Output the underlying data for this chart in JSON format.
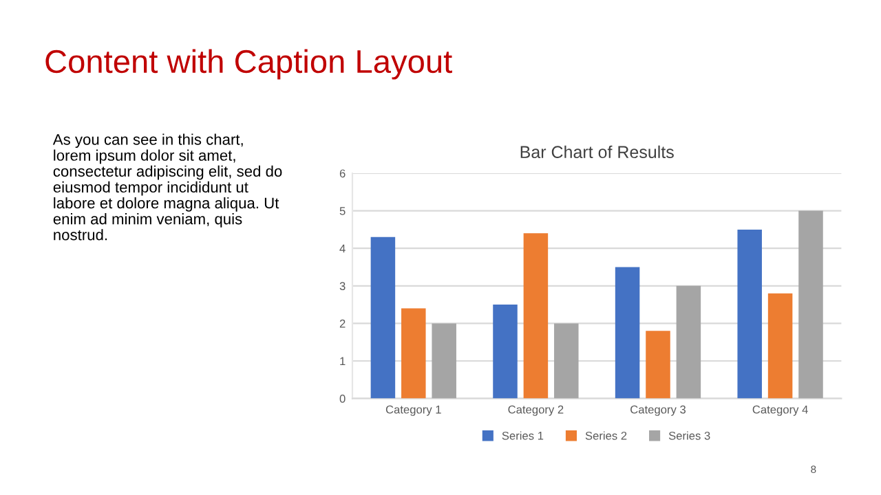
{
  "chart_data": {
    "type": "bar",
    "title": "Bar Chart of Results",
    "categories": [
      "Category 1",
      "Category 2",
      "Category 3",
      "Category 4"
    ],
    "series": [
      {
        "name": "Series 1",
        "color": "#4472c4",
        "values": [
          4.3,
          2.5,
          3.5,
          4.5
        ]
      },
      {
        "name": "Series 2",
        "color": "#ed7d31",
        "values": [
          2.4,
          4.4,
          1.8,
          2.8
        ]
      },
      {
        "name": "Series 3",
        "color": "#a5a5a5",
        "values": [
          2,
          2,
          3,
          5
        ]
      }
    ],
    "ylim": [
      0,
      6
    ],
    "yticks": [
      0,
      1,
      2,
      3,
      4,
      5,
      6
    ],
    "grid": "y",
    "legend": "bottom",
    "annotations": [
      "Content with Caption Layout",
      "As you can see in this chart,\nlorem ipsum dolor sit amet,\nconsectetur adipiscing elit, sed do\neiusmod tempor incididunt ut\nlabore et dolore magna aliqua. Ut\nenim ad minim veniam, quis\nnostrud.",
      "8"
    ]
  }
}
